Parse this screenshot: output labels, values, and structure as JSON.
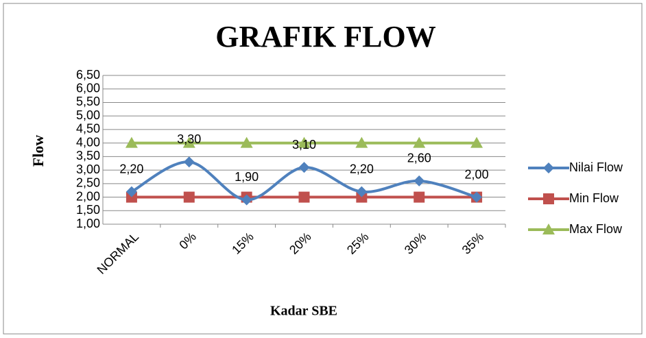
{
  "chart_data": {
    "type": "line",
    "title": "GRAFIK FLOW",
    "x_label": "Kadar SBE",
    "y_label": "Flow",
    "categories": [
      "NORMAL",
      "0%",
      "15%",
      "20%",
      "25%",
      "30%",
      "35%"
    ],
    "series": [
      {
        "name": "Nilai Flow",
        "color": "#4f81bd",
        "marker": "diamond",
        "smooth": true,
        "values": [
          2.2,
          3.3,
          1.9,
          3.1,
          2.2,
          2.6,
          2.0
        ],
        "value_labels": [
          "2,20",
          "3,30",
          "1,90",
          "3,10",
          "2,20",
          "2,60",
          "2,00"
        ]
      },
      {
        "name": "Min Flow",
        "color": "#c0504d",
        "marker": "square",
        "smooth": false,
        "values": [
          2,
          2,
          2,
          2,
          2,
          2,
          2
        ]
      },
      {
        "name": "Max Flow",
        "color": "#9bbb59",
        "marker": "triangle",
        "smooth": false,
        "values": [
          4,
          4,
          4,
          4,
          4,
          4,
          4
        ]
      }
    ],
    "ylim": [
      1,
      6.5
    ],
    "yticks": [
      {
        "value": 1,
        "label": "1,00"
      },
      {
        "value": 1.5,
        "label": "1,50"
      },
      {
        "value": 2,
        "label": "2,00"
      },
      {
        "value": 2.5,
        "label": "2,50"
      },
      {
        "value": 3,
        "label": "3,00"
      },
      {
        "value": 3.5,
        "label": "3,50"
      },
      {
        "value": 4,
        "label": "4,00"
      },
      {
        "value": 4.5,
        "label": "4,50"
      },
      {
        "value": 5,
        "label": "5,00"
      },
      {
        "value": 5.5,
        "label": "5,50"
      },
      {
        "value": 6,
        "label": "6,00"
      },
      {
        "value": 6.5,
        "label": "6,50"
      }
    ],
    "grid": true,
    "legend": "right"
  }
}
